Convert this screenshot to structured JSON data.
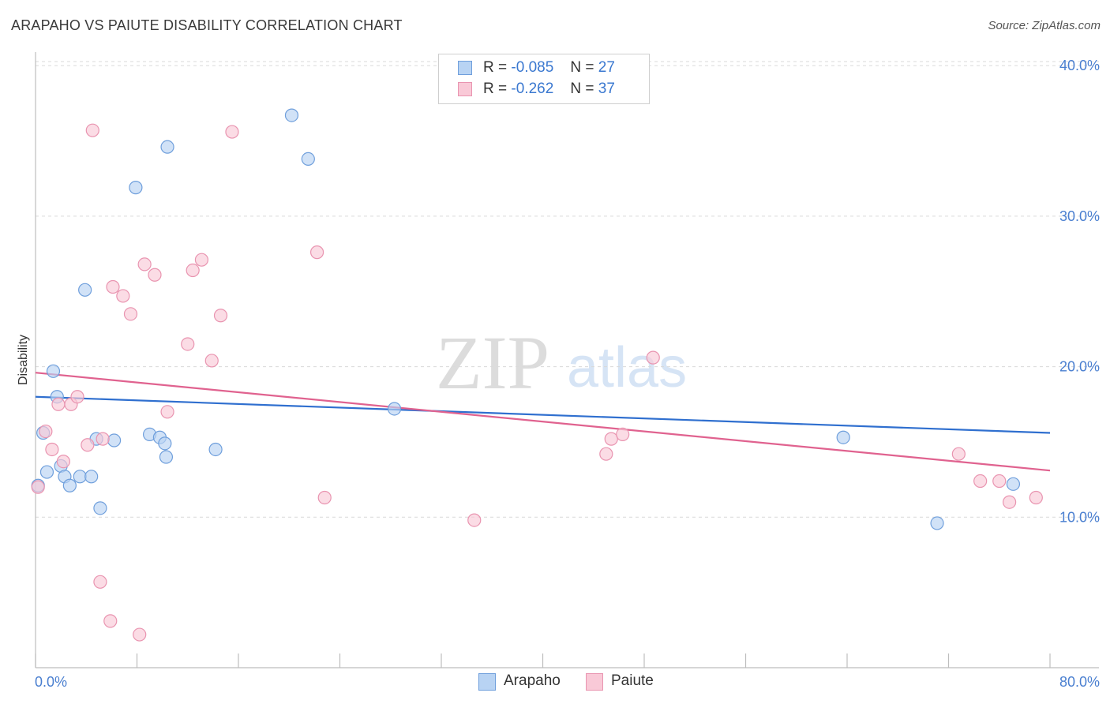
{
  "header": {
    "title": "ARAPAHO VS PAIUTE DISABILITY CORRELATION CHART",
    "source": "Source: ZipAtlas.com"
  },
  "watermark": {
    "zip": "ZIP",
    "atlas": "atlas"
  },
  "legend": {
    "arapaho": {
      "r_label": "R =",
      "r_value": "-0.085",
      "n_label": "N =",
      "n_value": "27"
    },
    "paiute": {
      "r_label": "R =",
      "r_value": "-0.262",
      "n_label": "N =",
      "n_value": "37"
    }
  },
  "colors": {
    "arapaho_fill": "#b8d3f3",
    "arapaho_stroke": "#6f9fdc",
    "arapaho_line": "#2f6fcf",
    "paiute_fill": "#f9c9d7",
    "paiute_stroke": "#e994b0",
    "paiute_line": "#e0628f",
    "tick_text": "#4a7fd0",
    "grid": "#d9d9d9"
  },
  "chart_data": {
    "type": "scatter",
    "title": "ARAPAHO VS PAIUTE DISABILITY CORRELATION CHART",
    "xlabel": "",
    "ylabel": "Disability",
    "xlim": [
      0,
      80
    ],
    "ylim": [
      0,
      40.9
    ],
    "x_tick_labels": [
      {
        "value": 0,
        "label": "0.0%"
      },
      {
        "value": 80,
        "label": "80.0%"
      }
    ],
    "y_tick_labels": [
      {
        "value": 10,
        "label": "10.0%"
      },
      {
        "value": 20,
        "label": "20.0%"
      },
      {
        "value": 30,
        "label": "30.0%"
      },
      {
        "value": 40,
        "label": "40.0%"
      }
    ],
    "x_minor_ticks": [
      0,
      8,
      16,
      24,
      32,
      40,
      48,
      56,
      64,
      72,
      80
    ],
    "series": [
      {
        "name": "Arapaho",
        "R": -0.085,
        "N": 27,
        "trend": {
          "x": [
            0,
            80
          ],
          "y": [
            18.0,
            15.6
          ]
        },
        "points": [
          [
            0.2,
            12.1
          ],
          [
            0.6,
            15.6
          ],
          [
            0.9,
            13.0
          ],
          [
            1.4,
            19.7
          ],
          [
            1.7,
            18.0
          ],
          [
            2.0,
            13.4
          ],
          [
            2.3,
            12.7
          ],
          [
            2.7,
            12.1
          ],
          [
            3.5,
            12.7
          ],
          [
            3.9,
            25.1
          ],
          [
            4.4,
            12.7
          ],
          [
            4.8,
            15.2
          ],
          [
            5.1,
            10.6
          ],
          [
            6.2,
            15.1
          ],
          [
            7.9,
            31.9
          ],
          [
            9.0,
            15.5
          ],
          [
            9.8,
            15.3
          ],
          [
            10.2,
            14.9
          ],
          [
            10.3,
            14.0
          ],
          [
            10.4,
            34.6
          ],
          [
            14.2,
            14.5
          ],
          [
            20.2,
            36.7
          ],
          [
            21.5,
            33.8
          ],
          [
            28.3,
            17.2
          ],
          [
            63.7,
            15.3
          ],
          [
            71.1,
            9.6
          ],
          [
            77.1,
            12.2
          ]
        ]
      },
      {
        "name": "Paiute",
        "R": -0.262,
        "N": 37,
        "trend": {
          "x": [
            0,
            80
          ],
          "y": [
            19.6,
            13.1
          ]
        },
        "points": [
          [
            0.2,
            12.0
          ],
          [
            0.8,
            15.7
          ],
          [
            1.3,
            14.5
          ],
          [
            1.8,
            17.5
          ],
          [
            2.2,
            13.7
          ],
          [
            2.8,
            17.5
          ],
          [
            3.3,
            18.0
          ],
          [
            4.1,
            14.8
          ],
          [
            4.5,
            35.7
          ],
          [
            5.1,
            5.7
          ],
          [
            5.3,
            15.2
          ],
          [
            5.9,
            3.1
          ],
          [
            6.1,
            25.3
          ],
          [
            6.9,
            24.7
          ],
          [
            7.5,
            23.5
          ],
          [
            8.2,
            2.2
          ],
          [
            8.6,
            26.8
          ],
          [
            9.4,
            26.1
          ],
          [
            10.4,
            17.0
          ],
          [
            12.0,
            21.5
          ],
          [
            12.4,
            26.4
          ],
          [
            13.1,
            27.1
          ],
          [
            13.9,
            20.4
          ],
          [
            14.6,
            23.4
          ],
          [
            15.5,
            35.6
          ],
          [
            22.2,
            27.6
          ],
          [
            22.8,
            11.3
          ],
          [
            34.6,
            9.8
          ],
          [
            45.0,
            14.2
          ],
          [
            45.4,
            15.2
          ],
          [
            46.3,
            15.5
          ],
          [
            48.7,
            20.6
          ],
          [
            72.8,
            14.2
          ],
          [
            74.5,
            12.4
          ],
          [
            76.0,
            12.4
          ],
          [
            76.8,
            11.0
          ],
          [
            78.9,
            11.3
          ]
        ]
      }
    ]
  },
  "bottom_legend": {
    "arapaho": "Arapaho",
    "paiute": "Paiute"
  }
}
